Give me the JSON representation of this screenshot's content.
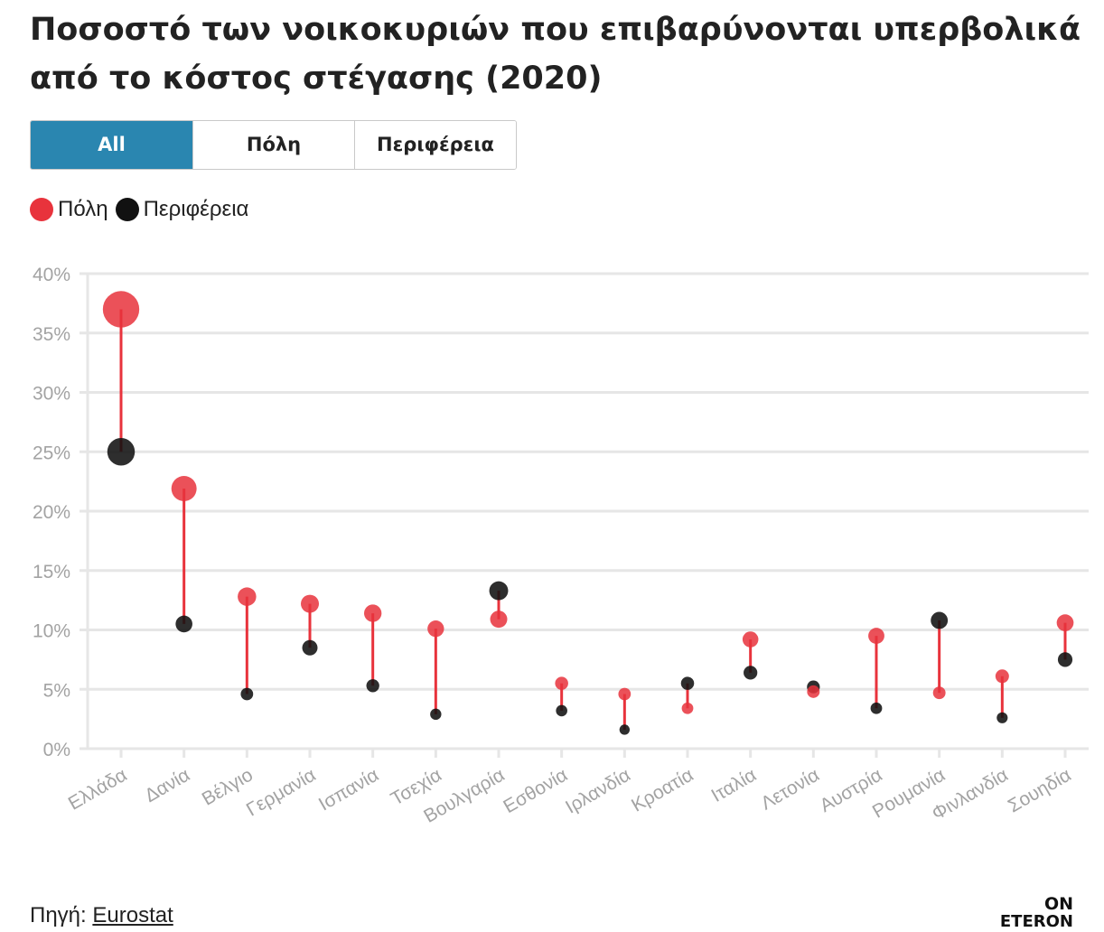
{
  "title": "Ποσοστό των νοικοκυριών που επιβαρύνονται υπερβολικά από το κόστος στέγασης (2020)",
  "toggle": {
    "buttons": [
      {
        "label": "All",
        "active": true
      },
      {
        "label": "Πόλη",
        "active": false
      },
      {
        "label": "Περιφέρεια",
        "active": false
      }
    ]
  },
  "legend": {
    "items": [
      {
        "label": "Πόλη",
        "color": "#e8333c"
      },
      {
        "label": "Περιφέρεια",
        "color": "#111111"
      }
    ]
  },
  "footer": {
    "source_prefix": "Πηγή:",
    "source_link": "Eurostat",
    "logo_top": "ON",
    "logo_bottom": "ETERON"
  },
  "colors": {
    "accent": "#2a86b0",
    "city": "#e8333c",
    "rural": "#111111",
    "connector": "#e8333c",
    "grid": "#e6e6e6",
    "axis_text": "#a3a3a3"
  },
  "chart_data": {
    "type": "scatter",
    "subtype": "dumbbell",
    "categories": [
      "Ελλάδα",
      "Δανία",
      "Βέλγιο",
      "Γερμανία",
      "Ισπανία",
      "Τσεχία",
      "Βουλγαρία",
      "Εσθονία",
      "Ιρλανδία",
      "Κροατία",
      "Ιταλία",
      "Λετονία",
      "Αυστρία",
      "Ρουμανία",
      "Φινλανδία",
      "Σουηδία"
    ],
    "series": [
      {
        "name": "Πόλη",
        "color": "#e8333c",
        "values": [
          37.0,
          21.9,
          12.8,
          12.2,
          11.4,
          10.1,
          10.9,
          5.5,
          4.6,
          3.4,
          9.2,
          4.8,
          9.5,
          4.7,
          6.1,
          10.6
        ]
      },
      {
        "name": "Περιφέρεια",
        "color": "#111111",
        "values": [
          25.0,
          10.5,
          4.6,
          8.5,
          5.3,
          2.9,
          13.3,
          3.2,
          1.6,
          5.5,
          6.4,
          5.2,
          3.4,
          10.8,
          2.6,
          7.5
        ]
      }
    ],
    "ylim": [
      0,
      40
    ],
    "yticks": [
      0,
      5,
      10,
      15,
      20,
      25,
      30,
      35,
      40
    ],
    "ytick_labels": [
      "0%",
      "5%",
      "10%",
      "15%",
      "20%",
      "25%",
      "30%",
      "35%",
      "40%"
    ],
    "xlabel": "",
    "ylabel": "",
    "grid": true,
    "legend_position": "top-left",
    "marker_size_encodes_value": true
  }
}
